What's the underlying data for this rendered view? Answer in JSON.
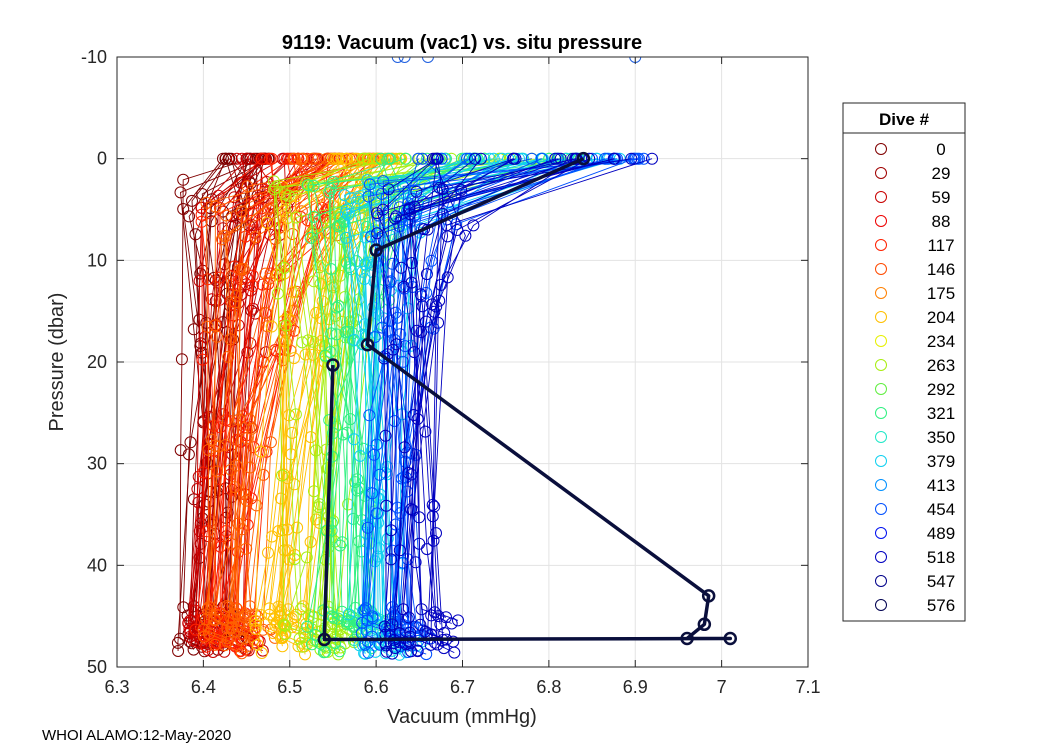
{
  "chart_data": {
    "type": "scatter",
    "title": "9119: Vacuum (vac1) vs. situ pressure",
    "xlabel": "Vacuum (mmHg)",
    "ylabel": "Pressure (dbar)",
    "xlim": [
      6.3,
      7.1
    ],
    "ylim": [
      -10,
      50
    ],
    "y_reversed": true,
    "grid": true,
    "x_ticks": [
      "6.3",
      "6.4",
      "6.5",
      "6.6",
      "6.7",
      "6.8",
      "6.9",
      "7",
      "7.1"
    ],
    "y_ticks": [
      "-10",
      "0",
      "10",
      "20",
      "30",
      "40",
      "50"
    ],
    "legend": {
      "title": "Dive #",
      "placement": "outside-right",
      "entries": [
        {
          "label": "0",
          "color": "#800000"
        },
        {
          "label": "29",
          "color": "#a00000"
        },
        {
          "label": "59",
          "color": "#c80000"
        },
        {
          "label": "88",
          "color": "#ee0000"
        },
        {
          "label": "117",
          "color": "#ff2000"
        },
        {
          "label": "146",
          "color": "#ff4a00"
        },
        {
          "label": "175",
          "color": "#ff8000"
        },
        {
          "label": "204",
          "color": "#ffc000"
        },
        {
          "label": "234",
          "color": "#e6f000"
        },
        {
          "label": "263",
          "color": "#a8ee10"
        },
        {
          "label": "292",
          "color": "#60ee40"
        },
        {
          "label": "321",
          "color": "#30f080"
        },
        {
          "label": "350",
          "color": "#20e8c8"
        },
        {
          "label": "379",
          "color": "#10d0f0"
        },
        {
          "label": "413",
          "color": "#0090ff"
        },
        {
          "label": "454",
          "color": "#0050ff"
        },
        {
          "label": "489",
          "color": "#0010f0"
        },
        {
          "label": "518",
          "color": "#0000c0"
        },
        {
          "label": "547",
          "color": "#00008a"
        },
        {
          "label": "576",
          "color": "#000050"
        }
      ]
    },
    "highlight_series": {
      "name": "576",
      "color": "#0a0f3c",
      "points": [
        {
          "x": 6.84,
          "y": 0
        },
        {
          "x": 6.6,
          "y": 9
        },
        {
          "x": 6.59,
          "y": 18.3
        },
        {
          "x": 6.985,
          "y": 43
        },
        {
          "x": 6.98,
          "y": 45.8
        },
        {
          "x": 6.96,
          "y": 47.2
        },
        {
          "x": 7.01,
          "y": 47.2
        },
        {
          "x": 6.54,
          "y": 47.3
        },
        {
          "x": 6.55,
          "y": 20.3
        }
      ]
    },
    "outlier_points": [
      {
        "x": 6.625,
        "y": -10,
        "color": "#2060e0"
      },
      {
        "x": 6.633,
        "y": -10,
        "color": "#2060e0"
      },
      {
        "x": 6.66,
        "y": -10,
        "color": "#2060e0"
      },
      {
        "x": 6.9,
        "y": -10,
        "color": "#2060e0"
      }
    ],
    "dive_groups": [
      {
        "color": "#800000",
        "xmin": 6.37,
        "xmax": 6.47,
        "top_x": [
          6.42,
          6.48
        ],
        "bottom_x": [
          6.37,
          6.44
        ]
      },
      {
        "color": "#c80000",
        "xmin": 6.38,
        "xmax": 6.52,
        "top_x": [
          6.43,
          6.56
        ],
        "bottom_x": [
          6.38,
          6.45
        ]
      },
      {
        "color": "#ff2000",
        "xmin": 6.39,
        "xmax": 6.55,
        "top_x": [
          6.45,
          6.6
        ],
        "bottom_x": [
          6.39,
          6.46
        ]
      },
      {
        "color": "#ff6000",
        "xmin": 6.4,
        "xmax": 6.57,
        "top_x": [
          6.5,
          6.62
        ],
        "bottom_x": [
          6.4,
          6.47
        ]
      },
      {
        "color": "#ffc000",
        "xmin": 6.47,
        "xmax": 6.6,
        "top_x": [
          6.55,
          6.63
        ],
        "bottom_x": [
          6.46,
          6.52
        ]
      },
      {
        "color": "#a8ee10",
        "xmin": 6.48,
        "xmax": 6.62,
        "top_x": [
          6.58,
          6.82
        ],
        "bottom_x": [
          6.49,
          6.56
        ]
      },
      {
        "color": "#30f080",
        "xmin": 6.52,
        "xmax": 6.64,
        "top_x": [
          6.6,
          6.85
        ],
        "bottom_x": [
          6.52,
          6.6
        ]
      },
      {
        "color": "#10d0f0",
        "xmin": 6.56,
        "xmax": 6.66,
        "top_x": [
          6.62,
          6.9
        ],
        "bottom_x": [
          6.56,
          6.63
        ]
      },
      {
        "color": "#0050ff",
        "xmin": 6.59,
        "xmax": 6.7,
        "top_x": [
          6.64,
          6.94
        ],
        "bottom_x": [
          6.58,
          6.66
        ]
      },
      {
        "color": "#0000c0",
        "xmin": 6.6,
        "xmax": 6.72,
        "top_x": [
          6.66,
          6.95
        ],
        "bottom_x": [
          6.6,
          6.68
        ]
      }
    ]
  },
  "footer": "WHOI ALAMO:12-May-2020"
}
